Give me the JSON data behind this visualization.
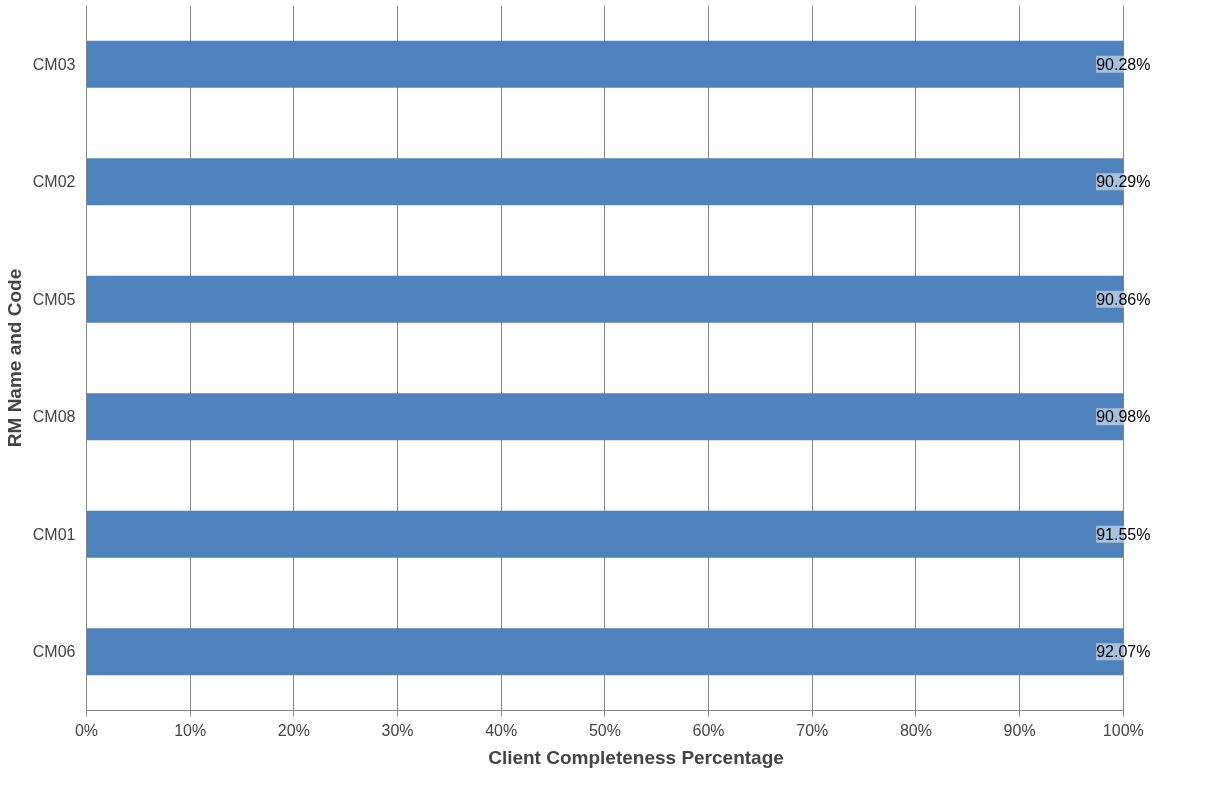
{
  "chart_data": {
    "type": "bar",
    "orientation": "horizontal",
    "xlabel": "Client Completeness Percentage",
    "ylabel": "RM Name and Code",
    "categories": [
      "CM03",
      "CM02",
      "CM05",
      "CM08",
      "CM01",
      "CM06"
    ],
    "series": [
      {
        "color": "#4f81bd",
        "values": [
          100,
          100,
          100,
          100,
          100,
          100
        ]
      }
    ],
    "annotations": [
      "90.28%",
      "90.29%",
      "90.86%",
      "90.98%",
      "91.55%",
      "92.07%"
    ],
    "xlim": [
      0,
      100
    ],
    "xticks": [
      {
        "value": 0,
        "label": "0%"
      },
      {
        "value": 10,
        "label": "10%"
      },
      {
        "value": 20,
        "label": "20%"
      },
      {
        "value": 30,
        "label": "30%"
      },
      {
        "value": 40,
        "label": "40%"
      },
      {
        "value": 50,
        "label": "50%"
      },
      {
        "value": 60,
        "label": "60%"
      },
      {
        "value": 70,
        "label": "70%"
      },
      {
        "value": 80,
        "label": "80%"
      },
      {
        "value": 90,
        "label": "90%"
      },
      {
        "value": 100,
        "label": "100%"
      }
    ],
    "grid": "x"
  }
}
